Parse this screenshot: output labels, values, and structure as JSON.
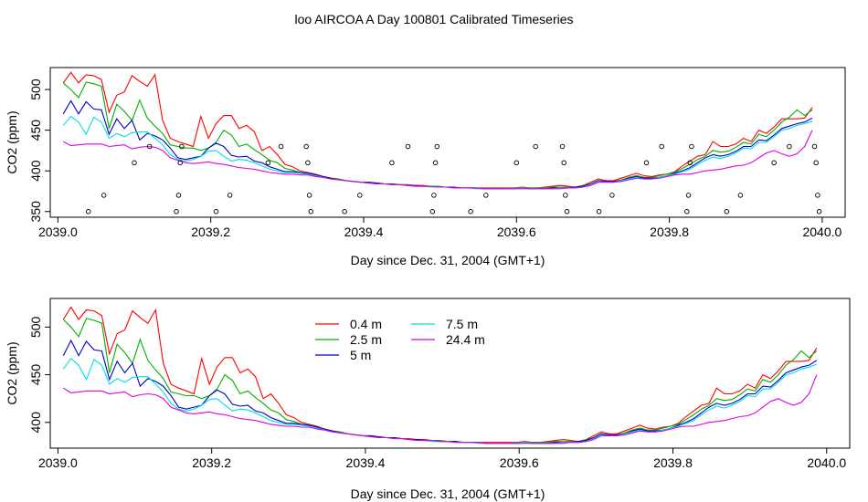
{
  "page_title": "loo AIRCOA A  Day 100801  Calibrated Timeseries",
  "colors": {
    "0.4 m": "#ff0000",
    "2.5 m": "#00b000",
    "5 m": "#0000c8",
    "7.5 m": "#00e0e0",
    "24.4 m": "#e000e0",
    "markers": "#000000"
  },
  "chart_data": [
    {
      "type": "line",
      "title": "",
      "xlabel": "Day since Dec. 31, 2004 (GMT+1)",
      "ylabel": "CO2 (ppm)",
      "xlim": [
        2038.99,
        2040.03
      ],
      "ylim": [
        343,
        527
      ],
      "xticks": [
        2039.0,
        2039.2,
        2039.4,
        2039.6,
        2039.8,
        2040.0
      ],
      "xtick_labels": [
        "2039.0",
        "2039.2",
        "2039.4",
        "2039.6",
        "2039.8",
        "2040.0"
      ],
      "yticks": [
        350,
        400,
        450,
        500
      ],
      "ytick_labels": [
        "350",
        "400",
        "450",
        "500"
      ],
      "grid": false,
      "legend": null,
      "x": [
        2039.007,
        2039.017,
        2039.027,
        2039.037,
        2039.047,
        2039.057,
        2039.067,
        2039.077,
        2039.087,
        2039.097,
        2039.107,
        2039.117,
        2039.127,
        2039.137,
        2039.147,
        2039.157,
        2039.167,
        2039.177,
        2039.187,
        2039.197,
        2039.207,
        2039.217,
        2039.227,
        2039.237,
        2039.247,
        2039.257,
        2039.267,
        2039.277,
        2039.287,
        2039.297,
        2039.307,
        2039.317,
        2039.327,
        2039.337,
        2039.347,
        2039.357,
        2039.367,
        2039.377,
        2039.387,
        2039.397,
        2039.407,
        2039.417,
        2039.427,
        2039.437,
        2039.447,
        2039.457,
        2039.467,
        2039.477,
        2039.487,
        2039.497,
        2039.507,
        2039.517,
        2039.527,
        2039.537,
        2039.547,
        2039.557,
        2039.567,
        2039.577,
        2039.587,
        2039.597,
        2039.607,
        2039.617,
        2039.627,
        2039.637,
        2039.647,
        2039.657,
        2039.667,
        2039.677,
        2039.687,
        2039.697,
        2039.707,
        2039.717,
        2039.727,
        2039.737,
        2039.747,
        2039.757,
        2039.767,
        2039.777,
        2039.787,
        2039.797,
        2039.807,
        2039.817,
        2039.827,
        2039.837,
        2039.847,
        2039.857,
        2039.867,
        2039.877,
        2039.887,
        2039.897,
        2039.907,
        2039.917,
        2039.927,
        2039.937,
        2039.947,
        2039.957,
        2039.967,
        2039.977,
        2039.987
      ],
      "series": [
        {
          "name": "0.4 m",
          "color": "#ff0000",
          "values": [
            508,
            521,
            508,
            518,
            517,
            512,
            472,
            493,
            497,
            517,
            510,
            504,
            518,
            462,
            440,
            436,
            433,
            430,
            467,
            440,
            458,
            468,
            468,
            452,
            456,
            448,
            425,
            430,
            420,
            408,
            405,
            400,
            398,
            396,
            393,
            391,
            390,
            388,
            387,
            386,
            386,
            385,
            384,
            384,
            383,
            383,
            382,
            382,
            381,
            381,
            380,
            380,
            379,
            379,
            379,
            379,
            379,
            379,
            379,
            379,
            380,
            379,
            379,
            380,
            381,
            382,
            381,
            380,
            382,
            386,
            390,
            388,
            388,
            391,
            394,
            397,
            394,
            393,
            395,
            396,
            399,
            406,
            412,
            418,
            420,
            436,
            430,
            430,
            433,
            440,
            436,
            450,
            446,
            454,
            464,
            464,
            464,
            465,
            478
          ]
        },
        {
          "name": "2.5 m",
          "color": "#00b000",
          "values": [
            508,
            500,
            490,
            509,
            507,
            504,
            452,
            482,
            473,
            462,
            487,
            465,
            455,
            446,
            432,
            430,
            428,
            428,
            425,
            428,
            435,
            450,
            444,
            430,
            433,
            426,
            420,
            413,
            410,
            403,
            401,
            398,
            397,
            395,
            393,
            391,
            390,
            388,
            387,
            386,
            385,
            385,
            384,
            384,
            383,
            382,
            382,
            381,
            381,
            381,
            380,
            380,
            379,
            379,
            379,
            378,
            378,
            378,
            378,
            379,
            379,
            379,
            379,
            379,
            380,
            380,
            380,
            380,
            382,
            384,
            388,
            387,
            387,
            389,
            392,
            394,
            392,
            392,
            394,
            396,
            398,
            403,
            408,
            414,
            418,
            425,
            423,
            424,
            429,
            435,
            433,
            445,
            442,
            450,
            460,
            466,
            475,
            468,
            475
          ]
        },
        {
          "name": "5 m",
          "color": "#0000c8",
          "values": [
            470,
            486,
            470,
            485,
            476,
            475,
            445,
            464,
            452,
            462,
            438,
            446,
            443,
            438,
            428,
            416,
            414,
            416,
            418,
            428,
            434,
            430,
            419,
            417,
            418,
            412,
            410,
            405,
            402,
            399,
            399,
            398,
            397,
            395,
            393,
            391,
            389,
            388,
            387,
            386,
            386,
            385,
            384,
            384,
            383,
            382,
            382,
            381,
            381,
            380,
            380,
            380,
            379,
            379,
            379,
            378,
            378,
            378,
            378,
            378,
            379,
            378,
            378,
            378,
            379,
            379,
            379,
            380,
            381,
            384,
            388,
            387,
            387,
            388,
            391,
            393,
            391,
            391,
            392,
            394,
            397,
            400,
            404,
            410,
            416,
            420,
            418,
            420,
            424,
            430,
            430,
            438,
            437,
            444,
            452,
            455,
            458,
            460,
            465
          ]
        },
        {
          "name": "7.5 m",
          "color": "#00e0e0",
          "values": [
            456,
            467,
            460,
            445,
            466,
            460,
            440,
            446,
            442,
            447,
            448,
            448,
            440,
            432,
            420,
            414,
            412,
            414,
            418,
            424,
            425,
            418,
            412,
            414,
            413,
            410,
            406,
            402,
            400,
            398,
            398,
            397,
            396,
            394,
            392,
            390,
            389,
            388,
            387,
            386,
            385,
            384,
            384,
            383,
            383,
            382,
            381,
            381,
            380,
            380,
            380,
            379,
            379,
            379,
            378,
            378,
            378,
            378,
            378,
            378,
            379,
            378,
            378,
            378,
            378,
            379,
            379,
            379,
            380,
            383,
            387,
            386,
            386,
            388,
            390,
            392,
            390,
            390,
            392,
            394,
            396,
            399,
            402,
            408,
            413,
            417,
            415,
            418,
            422,
            428,
            427,
            435,
            435,
            442,
            450,
            452,
            456,
            458,
            461
          ]
        },
        {
          "name": "24.4 m",
          "color": "#e000e0",
          "values": [
            436,
            431,
            432,
            433,
            433,
            433,
            430,
            431,
            432,
            427,
            429,
            430,
            429,
            425,
            416,
            413,
            410,
            409,
            410,
            411,
            409,
            408,
            406,
            404,
            403,
            402,
            400,
            398,
            397,
            396,
            396,
            395,
            395,
            393,
            392,
            390,
            389,
            388,
            387,
            386,
            385,
            384,
            384,
            383,
            383,
            382,
            381,
            381,
            381,
            380,
            380,
            379,
            379,
            379,
            379,
            378,
            378,
            378,
            378,
            378,
            378,
            378,
            378,
            378,
            378,
            378,
            379,
            379,
            380,
            382,
            386,
            386,
            386,
            387,
            389,
            391,
            390,
            390,
            391,
            393,
            395,
            396,
            396,
            398,
            400,
            401,
            402,
            404,
            406,
            407,
            410,
            416,
            422,
            425,
            421,
            418,
            421,
            430,
            450
          ]
        }
      ],
      "markers": {
        "name": "",
        "shape": "open-circle",
        "color": "#000000",
        "points": [
          [
            2039.04,
            350
          ],
          [
            2039.06,
            370
          ],
          [
            2039.1,
            410
          ],
          [
            2039.12,
            430
          ],
          [
            2039.155,
            350
          ],
          [
            2039.158,
            370
          ],
          [
            2039.16,
            410
          ],
          [
            2039.162,
            430
          ],
          [
            2039.207,
            350
          ],
          [
            2039.225,
            370
          ],
          [
            2039.275,
            410
          ],
          [
            2039.292,
            430
          ],
          [
            2039.325,
            430
          ],
          [
            2039.327,
            410
          ],
          [
            2039.329,
            370
          ],
          [
            2039.331,
            350
          ],
          [
            2039.375,
            350
          ],
          [
            2039.395,
            370
          ],
          [
            2039.437,
            410
          ],
          [
            2039.458,
            430
          ],
          [
            2039.49,
            350
          ],
          [
            2039.492,
            370
          ],
          [
            2039.494,
            410
          ],
          [
            2039.496,
            430
          ],
          [
            2039.54,
            350
          ],
          [
            2039.56,
            370
          ],
          [
            2039.6,
            410
          ],
          [
            2039.625,
            430
          ],
          [
            2039.66,
            430
          ],
          [
            2039.662,
            410
          ],
          [
            2039.664,
            370
          ],
          [
            2039.666,
            350
          ],
          [
            2039.708,
            350
          ],
          [
            2039.725,
            370
          ],
          [
            2039.77,
            410
          ],
          [
            2039.79,
            430
          ],
          [
            2039.823,
            350
          ],
          [
            2039.825,
            370
          ],
          [
            2039.827,
            410
          ],
          [
            2039.829,
            430
          ],
          [
            2039.875,
            350
          ],
          [
            2039.893,
            370
          ],
          [
            2039.937,
            410
          ],
          [
            2039.957,
            430
          ],
          [
            2039.99,
            430
          ],
          [
            2039.992,
            410
          ],
          [
            2039.994,
            370
          ],
          [
            2039.996,
            350
          ]
        ]
      }
    },
    {
      "type": "line",
      "title": "",
      "xlabel": "Day since Dec. 31, 2004 (GMT+1)",
      "ylabel": "CO2 (ppm)",
      "xlim": [
        2038.99,
        2040.03
      ],
      "ylim": [
        373,
        530
      ],
      "xticks": [
        2039.0,
        2039.2,
        2039.4,
        2039.6,
        2039.8,
        2040.0
      ],
      "xtick_labels": [
        "2039.0",
        "2039.2",
        "2039.4",
        "2039.6",
        "2039.8",
        "2040.0"
      ],
      "yticks": [
        400,
        450,
        500
      ],
      "ytick_labels": [
        "400",
        "450",
        "500"
      ],
      "grid": false,
      "legend": {
        "placement": "top-left",
        "entries": [
          "0.4 m",
          "2.5 m",
          "5 m",
          "7.5 m",
          "24.4 m"
        ]
      },
      "same_series_as_upper_panel": true
    }
  ]
}
